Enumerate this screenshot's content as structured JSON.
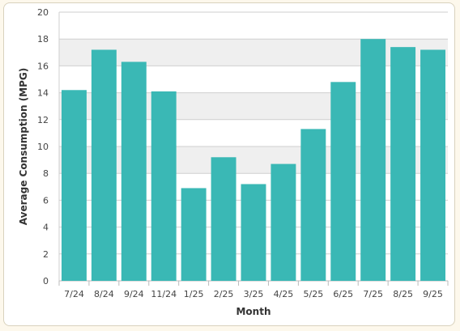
{
  "chart_data": {
    "type": "bar",
    "xlabel": "Month",
    "ylabel": "Average Consumption (MPG)",
    "ylim": [
      0,
      20
    ],
    "yticks": [
      0,
      2,
      4,
      6,
      8,
      10,
      12,
      14,
      16,
      18,
      20
    ],
    "categories": [
      "7/24",
      "8/24",
      "9/24",
      "11/24",
      "1/25",
      "2/25",
      "3/25",
      "4/25",
      "5/25",
      "6/25",
      "7/25",
      "8/25",
      "9/25"
    ],
    "values": [
      14.2,
      17.2,
      16.3,
      14.1,
      6.9,
      9.2,
      7.2,
      8.7,
      11.3,
      14.8,
      18.0,
      17.4,
      17.2
    ],
    "bar_color": "#3ab8b5",
    "band_color": "#efefef",
    "grid": true,
    "legend": "none"
  }
}
